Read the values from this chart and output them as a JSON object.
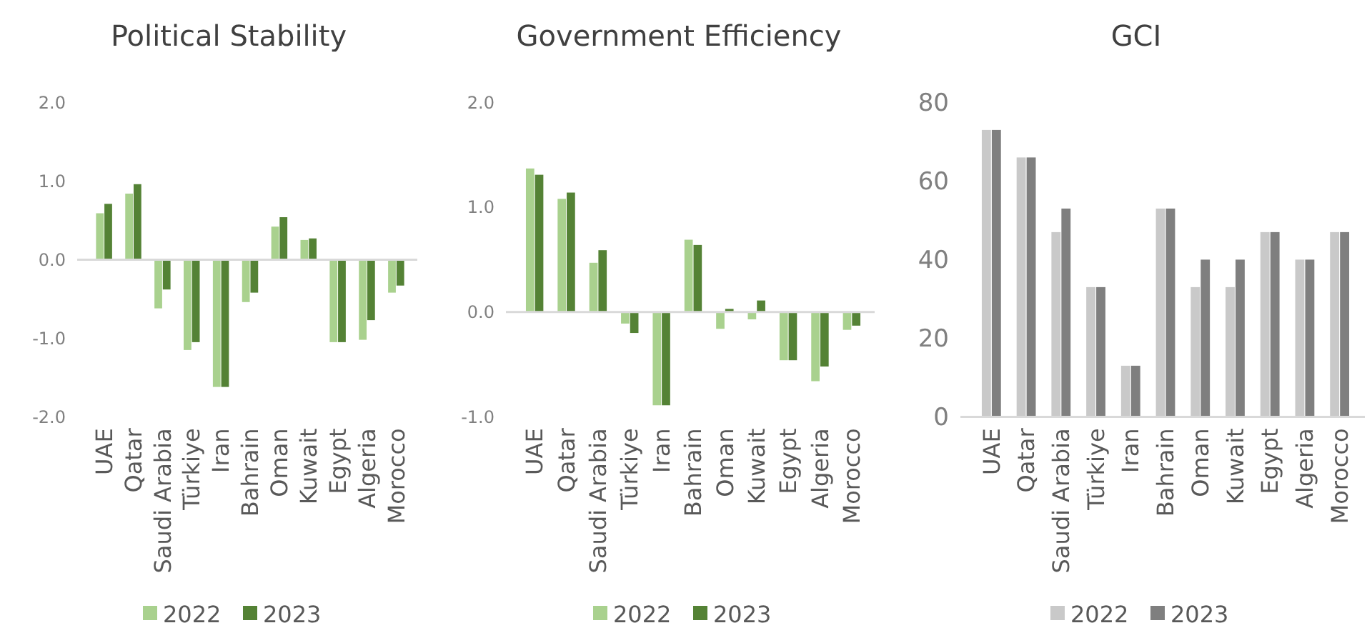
{
  "chart_data": [
    {
      "type": "bar",
      "title": "Political Stability",
      "categories": [
        "UAE",
        "Qatar",
        "Saudi Arabia",
        "Türkiye",
        "Iran",
        "Bahrain",
        "Oman",
        "Kuwait",
        "Egypt",
        "Algeria",
        "Morocco"
      ],
      "series": [
        {
          "name": "2022",
          "color": "#a9d18e",
          "values": [
            0.59,
            0.84,
            -0.62,
            -1.15,
            -1.62,
            -0.54,
            0.42,
            0.25,
            -1.05,
            -1.02,
            -0.42
          ]
        },
        {
          "name": "2023",
          "color": "#548235",
          "values": [
            0.71,
            0.96,
            -0.38,
            -1.05,
            -1.62,
            -0.42,
            0.54,
            0.27,
            -1.05,
            -0.77,
            -0.33
          ]
        }
      ],
      "ref_lines": [
        {
          "axis": "y",
          "value": 0,
          "color": "#d9d9d9"
        }
      ],
      "ylim": [
        -2,
        2
      ],
      "yticks": [
        {
          "value": -2,
          "label": "-2.0"
        },
        {
          "value": -1,
          "label": "-1.0"
        },
        {
          "value": 0,
          "label": "0.0"
        },
        {
          "value": 1,
          "label": "1.0"
        },
        {
          "value": 2,
          "label": "2.0"
        }
      ],
      "legend": "bottom",
      "grid": false
    },
    {
      "type": "bar",
      "title": "Government Efficiency",
      "categories": [
        "UAE",
        "Qatar",
        "Saudi Arabia",
        "Türkiye",
        "Iran",
        "Bahrain",
        "Oman",
        "Kuwait",
        "Egypt",
        "Algeria",
        "Morocco"
      ],
      "series": [
        {
          "name": "2022",
          "color": "#a9d18e",
          "values": [
            1.37,
            1.08,
            0.47,
            -0.11,
            -0.89,
            0.69,
            -0.16,
            -0.07,
            -0.46,
            -0.66,
            -0.17
          ]
        },
        {
          "name": "2023",
          "color": "#548235",
          "values": [
            1.31,
            1.14,
            0.59,
            -0.2,
            -0.89,
            0.64,
            0.03,
            0.11,
            -0.46,
            -0.52,
            -0.13
          ]
        }
      ],
      "ref_lines": [
        {
          "axis": "y",
          "value": 0,
          "color": "#d9d9d9"
        }
      ],
      "ylim": [
        -1,
        2
      ],
      "yticks": [
        {
          "value": -1,
          "label": "-1.0"
        },
        {
          "value": 0,
          "label": "0.0"
        },
        {
          "value": 1,
          "label": "1.0"
        },
        {
          "value": 2,
          "label": "2.0"
        }
      ],
      "legend": "bottom",
      "grid": false
    },
    {
      "type": "bar",
      "title": "GCI",
      "categories": [
        "UAE",
        "Qatar",
        "Saudi Arabia",
        "Türkiye",
        "Iran",
        "Bahrain",
        "Oman",
        "Kuwait",
        "Egypt",
        "Algeria",
        "Morocco"
      ],
      "series": [
        {
          "name": "2022",
          "color": "#c9c9c9",
          "values": [
            73,
            66,
            47,
            33,
            13,
            53,
            33,
            33,
            47,
            40,
            47
          ]
        },
        {
          "name": "2023",
          "color": "#7f7f7f",
          "values": [
            73,
            66,
            53,
            33,
            13,
            53,
            40,
            40,
            47,
            40,
            47
          ]
        }
      ],
      "ylim": [
        0,
        80
      ],
      "yticks": [
        0,
        20,
        40,
        60,
        80
      ],
      "legend": "bottom",
      "grid": false
    }
  ]
}
